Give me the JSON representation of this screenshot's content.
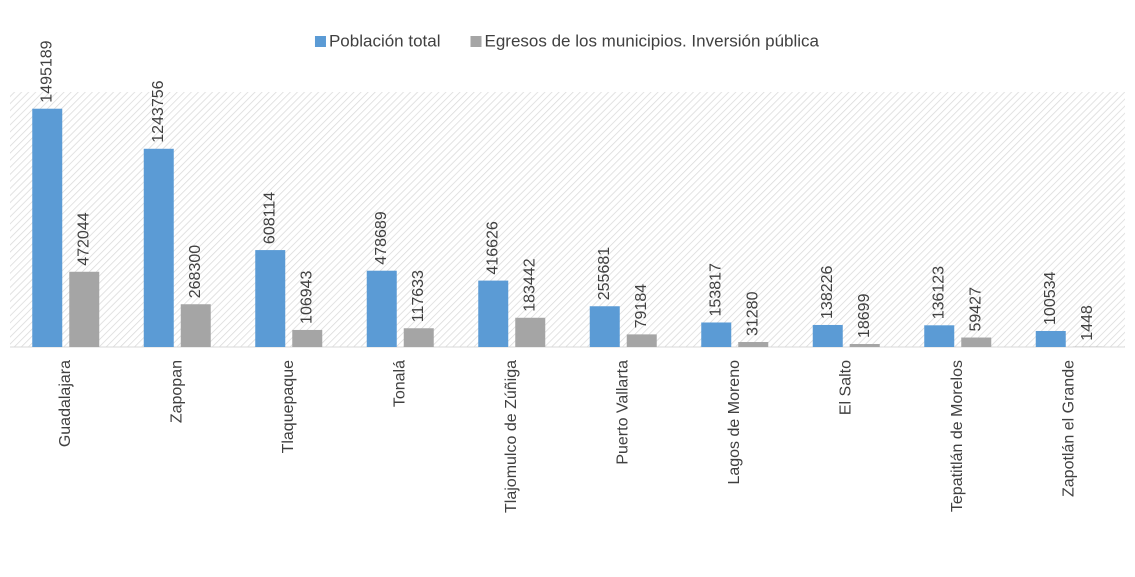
{
  "chart_data": {
    "type": "bar",
    "categories": [
      "Guadalajara",
      "Zapopan",
      "Tlaquepaque",
      "Tonalá",
      "Tlajomulco de Zúñiga",
      "Puerto Vallarta",
      "Lagos de Moreno",
      "El Salto",
      "Tepatitlán de Morelos",
      "Zapotlán el Grande"
    ],
    "series": [
      {
        "name": "Población total",
        "color": "#5b9bd5",
        "values": [
          1495189,
          1243756,
          608114,
          478689,
          416626,
          255681,
          153817,
          138226,
          136123,
          100534
        ]
      },
      {
        "name": "Egresos de los municipios. Inversión pública",
        "color": "#a5a5a5",
        "values": [
          472044,
          268300,
          106943,
          117633,
          183442,
          79184,
          31280,
          18699,
          59427,
          1448
        ]
      }
    ],
    "ylim": [
      0,
      1600000
    ],
    "legend": "top"
  }
}
